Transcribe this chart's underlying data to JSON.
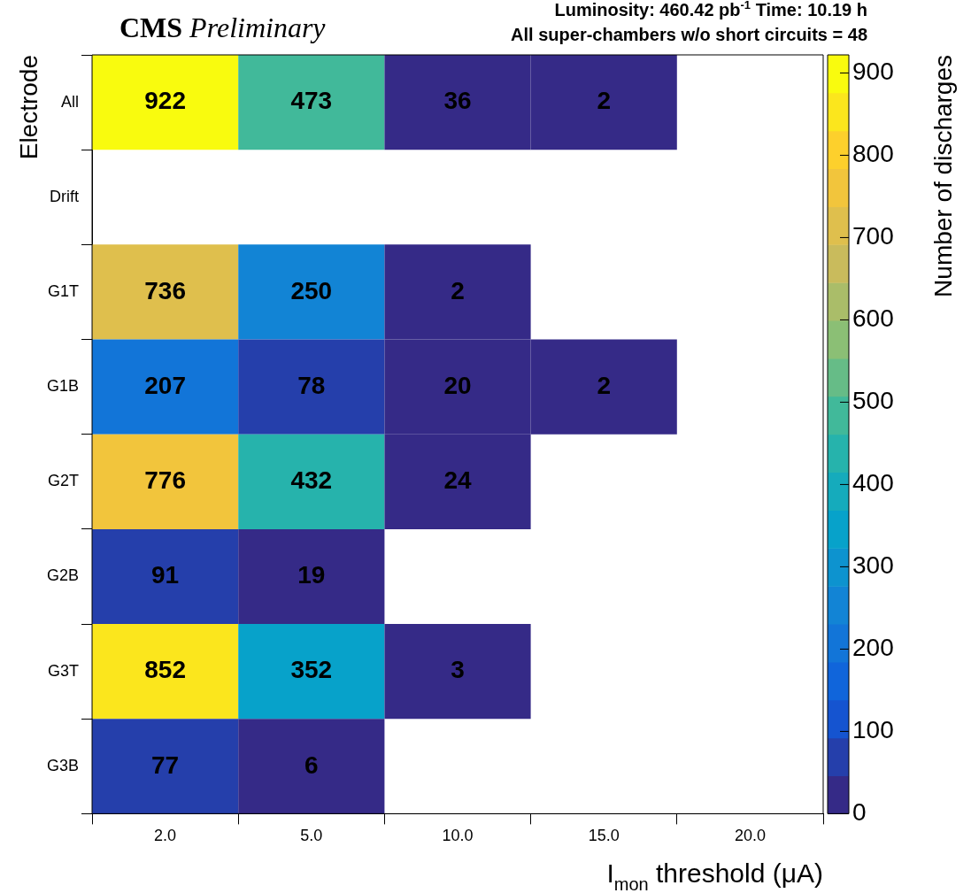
{
  "chart_data": {
    "type": "heatmap",
    "title": "CMS Preliminary",
    "annotations": [
      "Luminosity: 460.42 pb$^{-1}$ Time: 10.19 h",
      "All super-chambers w/o short circuits = 48"
    ],
    "xlabel": "I$_{mon}$ threshold (μA)",
    "ylabel": "Electrode",
    "clabel": "Number of discharges",
    "categories": [
      "2.0",
      "5.0",
      "10.0",
      "15.0",
      "20.0"
    ],
    "y_categories": [
      "All",
      "Drift",
      "G1T",
      "G1B",
      "G2T",
      "G2B",
      "G3T",
      "G3B"
    ],
    "cells": [
      [
        922,
        473,
        36,
        2,
        null
      ],
      [
        null,
        null,
        null,
        null,
        null
      ],
      [
        736,
        250,
        2,
        null,
        null
      ],
      [
        207,
        78,
        20,
        2,
        null
      ],
      [
        776,
        432,
        24,
        null,
        null
      ],
      [
        91,
        19,
        null,
        null,
        null
      ],
      [
        852,
        352,
        3,
        null,
        null
      ],
      [
        77,
        6,
        null,
        null,
        null
      ]
    ],
    "clim": [
      0,
      922
    ],
    "cticks": [
      0,
      100,
      200,
      300,
      400,
      500,
      600,
      700,
      800,
      900
    ],
    "data_labels": true,
    "grid": false
  }
}
